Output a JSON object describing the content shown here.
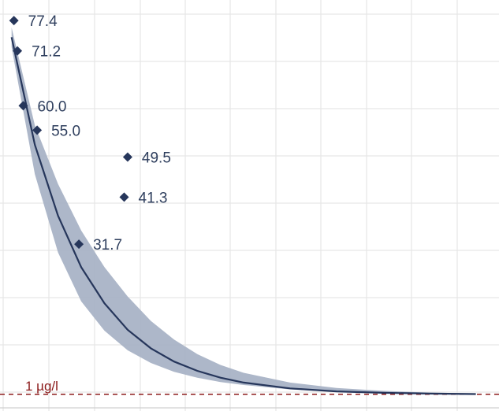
{
  "chart_data": {
    "type": "scatter",
    "title": "",
    "xlabel": "",
    "ylabel": "",
    "grid": true,
    "colors": {
      "points": "#26365b",
      "fit_line": "#26365b",
      "band": "#a9b3c6",
      "reference": "#8b1a1a",
      "grid": "#e6e6e6"
    },
    "series": [
      {
        "type": "scatter",
        "points": [
          {
            "x": 0.2,
            "y": 77.4,
            "label": "77.4"
          },
          {
            "x": 0.5,
            "y": 71.2,
            "label": "71.2"
          },
          {
            "x": 1.0,
            "y": 60.0,
            "label": "60.0"
          },
          {
            "x": 2.2,
            "y": 55.0,
            "label": "55.0"
          },
          {
            "x": 10.0,
            "y": 49.5,
            "label": "49.5"
          },
          {
            "x": 9.7,
            "y": 41.3,
            "label": "41.3"
          },
          {
            "x": 5.8,
            "y": 31.7,
            "label": "31.7"
          }
        ]
      },
      {
        "type": "line",
        "x": [
          0,
          2,
          4,
          6,
          8,
          10,
          12,
          14,
          16,
          18,
          20,
          24,
          28,
          32,
          36,
          40
        ],
        "y": [
          74,
          52,
          37.5,
          27,
          19.6,
          14.2,
          10.4,
          7.7,
          5.8,
          4.4,
          3.4,
          2.2,
          1.6,
          1.3,
          1.15,
          1.05
        ],
        "band_low": [
          72,
          46,
          30,
          20,
          14,
          10,
          7.4,
          5.6,
          4.4,
          3.5,
          2.9,
          2.0,
          1.5,
          1.2,
          1.05,
          1.0
        ],
        "band_high": [
          76,
          56,
          44,
          34.5,
          27,
          21,
          16,
          12.2,
          9.2,
          7.0,
          5.4,
          3.4,
          2.3,
          1.7,
          1.35,
          1.2
        ]
      }
    ],
    "reference_line": {
      "y": 1,
      "label": "1 µg/l",
      "style": "dashed"
    },
    "xlim": [
      -1,
      42
    ],
    "ylim": [
      0,
      80
    ]
  }
}
